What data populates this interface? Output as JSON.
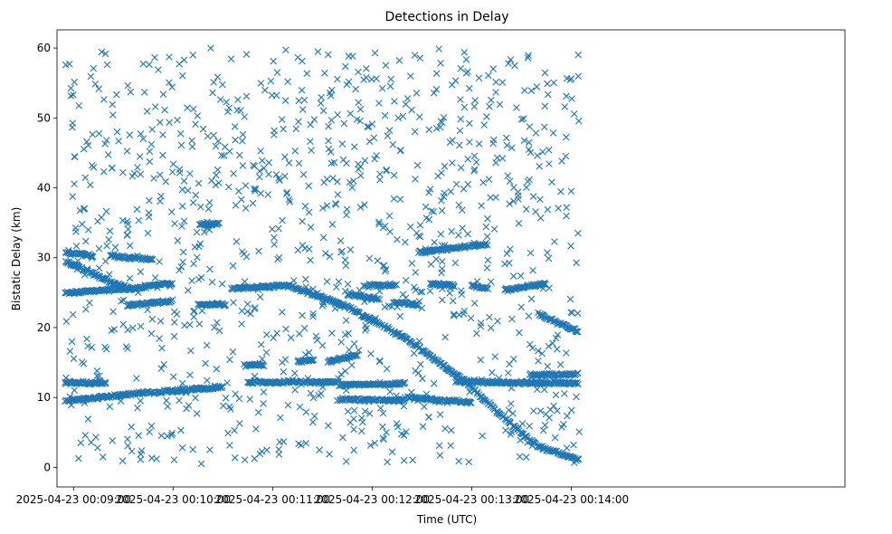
{
  "chart_data": {
    "type": "scatter",
    "title": "Detections in Delay",
    "xlabel": "Time (UTC)",
    "ylabel": "Bistatic Delay (km)",
    "marker": "x",
    "color": "#1f77b4",
    "xlim_seconds": [
      530,
      1005
    ],
    "ylim": [
      -2.8,
      62.6
    ],
    "x_ticks": [
      {
        "seconds": 540,
        "label": "2025-04-23 00:09:00"
      },
      {
        "seconds": 600,
        "label": "2025-04-23 00:10:00"
      },
      {
        "seconds": 660,
        "label": "2025-04-23 00:11:00"
      },
      {
        "seconds": 720,
        "label": "2025-04-23 00:12:00"
      },
      {
        "seconds": 780,
        "label": "2025-04-23 00:13:00"
      },
      {
        "seconds": 840,
        "label": "2025-04-23 00:14:00"
      }
    ],
    "y_ticks": [
      0,
      10,
      20,
      30,
      40,
      50,
      60
    ],
    "time_range_seconds": [
      535,
      845
    ],
    "tracks": [
      {
        "name": "track-1",
        "points": [
          [
            535,
            30.7
          ],
          [
            552,
            30.3
          ]
        ]
      },
      {
        "name": "track-2",
        "points": [
          [
            535,
            29.5
          ],
          [
            560,
            26.8
          ],
          [
            575,
            25.5
          ]
        ]
      },
      {
        "name": "track-3",
        "points": [
          [
            535,
            25.0
          ],
          [
            575,
            25.6
          ],
          [
            600,
            26.4
          ]
        ]
      },
      {
        "name": "track-4",
        "points": [
          [
            562,
            30.3
          ],
          [
            588,
            29.7
          ]
        ]
      },
      {
        "name": "track-5",
        "points": [
          [
            572,
            23.2
          ],
          [
            600,
            23.8
          ]
        ]
      },
      {
        "name": "track-6",
        "points": [
          [
            535,
            12.1
          ],
          [
            560,
            12.1
          ]
        ]
      },
      {
        "name": "track-7",
        "points": [
          [
            535,
            9.5
          ],
          [
            575,
            10.5
          ],
          [
            630,
            11.5
          ]
        ]
      },
      {
        "name": "track-8",
        "points": [
          [
            616,
            34.8
          ],
          [
            628,
            34.9
          ]
        ]
      },
      {
        "name": "track-9",
        "points": [
          [
            615,
            23.3
          ],
          [
            632,
            23.3
          ]
        ]
      },
      {
        "name": "track-10",
        "points": [
          [
            635,
            25.6
          ],
          [
            670,
            26.0
          ],
          [
            705,
            23.0
          ],
          [
            740,
            18.5
          ],
          [
            775,
            12.5
          ],
          [
            800,
            7.0
          ],
          [
            820,
            3.0
          ],
          [
            845,
            1.0
          ]
        ]
      },
      {
        "name": "track-11",
        "points": [
          [
            643,
            14.6
          ],
          [
            655,
            14.7
          ]
        ]
      },
      {
        "name": "track-12",
        "points": [
          [
            645,
            12.2
          ],
          [
            700,
            12.2
          ]
        ]
      },
      {
        "name": "track-13",
        "points": [
          [
            675,
            15.2
          ],
          [
            685,
            15.3
          ]
        ]
      },
      {
        "name": "track-14",
        "points": [
          [
            693,
            15.1
          ],
          [
            712,
            16.2
          ]
        ]
      },
      {
        "name": "track-15",
        "points": [
          [
            700,
            9.7
          ],
          [
            740,
            9.6
          ]
        ]
      },
      {
        "name": "track-16",
        "points": [
          [
            700,
            11.8
          ],
          [
            740,
            12.0
          ]
        ]
      },
      {
        "name": "track-17",
        "points": [
          [
            705,
            24.8
          ],
          [
            725,
            24.0
          ]
        ]
      },
      {
        "name": "track-18",
        "points": [
          [
            715,
            26.0
          ],
          [
            735,
            26.1
          ]
        ]
      },
      {
        "name": "track-19",
        "points": [
          [
            733,
            23.6
          ],
          [
            748,
            23.3
          ]
        ]
      },
      {
        "name": "track-20",
        "points": [
          [
            748,
            30.8
          ],
          [
            770,
            31.4
          ],
          [
            790,
            32.0
          ]
        ]
      },
      {
        "name": "track-21",
        "points": [
          [
            740,
            10.0
          ],
          [
            765,
            9.5
          ],
          [
            780,
            9.3
          ]
        ]
      },
      {
        "name": "track-22",
        "points": [
          [
            755,
            26.2
          ],
          [
            770,
            26.0
          ]
        ]
      },
      {
        "name": "track-23",
        "points": [
          [
            780,
            26.0
          ],
          [
            790,
            25.6
          ]
        ]
      },
      {
        "name": "track-24",
        "points": [
          [
            770,
            12.3
          ],
          [
            845,
            12.0
          ]
        ]
      },
      {
        "name": "track-25",
        "points": [
          [
            800,
            25.4
          ],
          [
            825,
            26.3
          ]
        ]
      },
      {
        "name": "track-26",
        "points": [
          [
            820,
            22.0
          ],
          [
            845,
            19.3
          ]
        ]
      },
      {
        "name": "track-27",
        "points": [
          [
            815,
            13.2
          ],
          [
            845,
            13.4
          ]
        ]
      }
    ]
  }
}
